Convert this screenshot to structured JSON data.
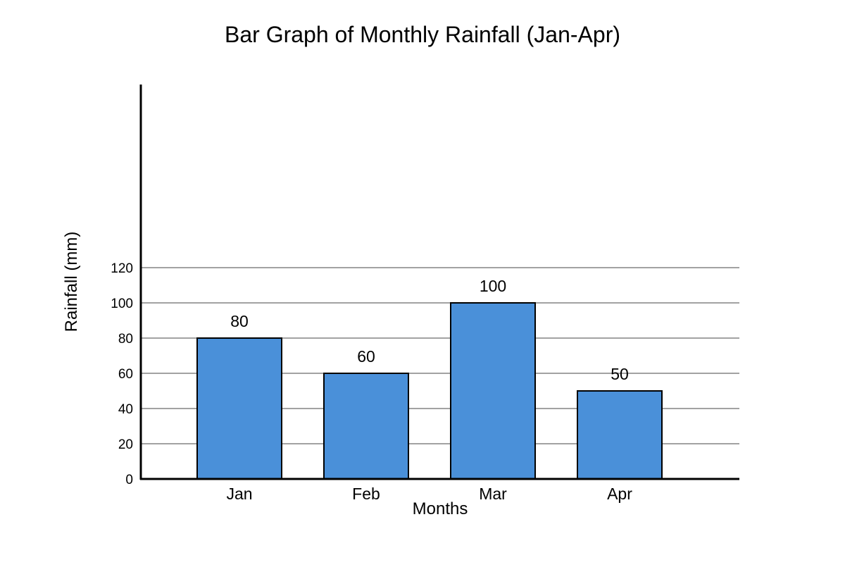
{
  "chart_data": {
    "type": "bar",
    "title": "Bar Graph of Monthly Rainfall (Jan-Apr)",
    "xlabel": "Months",
    "ylabel": "Rainfall (mm)",
    "categories": [
      "Jan",
      "Feb",
      "Mar",
      "Apr"
    ],
    "values": [
      80,
      60,
      100,
      50
    ],
    "data_labels": [
      "80",
      "60",
      "100",
      "50"
    ],
    "yticks": [
      0,
      20,
      40,
      60,
      80,
      100,
      120
    ],
    "ylim": [
      0,
      120
    ],
    "grid": true,
    "bar_color": "#4a90d9",
    "edge_color": "#000000"
  }
}
